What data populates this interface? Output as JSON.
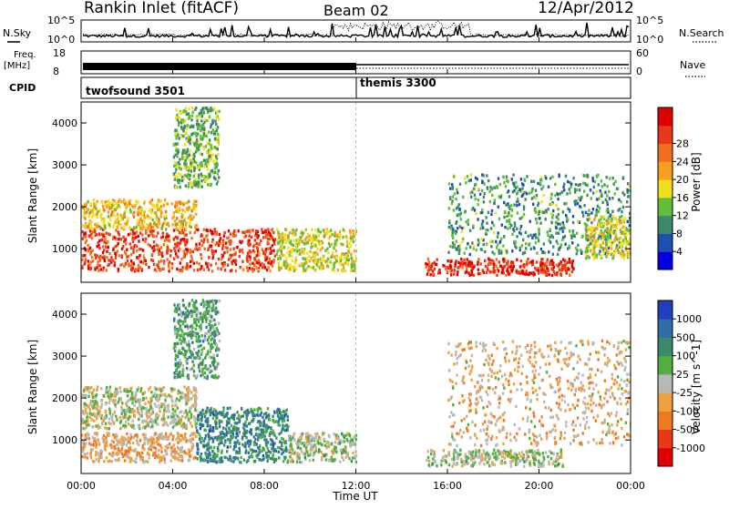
{
  "header": {
    "title": "Rankin Inlet (fitACF)",
    "beam": "Beam 02",
    "date": "12/Apr/2012"
  },
  "noise_panel": {
    "left_label": "N.Sky",
    "left_ticks": [
      "10^5",
      "10^0"
    ],
    "right_label": "N.Search",
    "right_ticks": [
      "10^5",
      "10^0"
    ]
  },
  "freq_panel": {
    "left_label_1": "Freq.",
    "left_label_2": "[MHz]",
    "left_ticks": [
      "18",
      "8"
    ],
    "right_label": "Nave",
    "right_ticks": [
      "60",
      "0"
    ]
  },
  "cpid": {
    "label": "CPID",
    "modes": [
      {
        "name": "twofsound 3501"
      },
      {
        "name": "themis 3300"
      }
    ]
  },
  "x_axis": {
    "label": "Time UT",
    "ticks": [
      "00:00",
      "04:00",
      "08:00",
      "12:00",
      "16:00",
      "20:00",
      "00:00"
    ]
  },
  "power_panel": {
    "ylabel": "Slant Range [km]",
    "yticks": [
      "1000",
      "2000",
      "3000",
      "4000"
    ],
    "colorbar_label": "Power [dB]",
    "colorbar_ticks": [
      "4",
      "8",
      "12",
      "16",
      "20",
      "24",
      "28"
    ],
    "colors": [
      "#0000e0",
      "#1f4fb0",
      "#3d8a6a",
      "#5fbf3a",
      "#f0e020",
      "#f5a020",
      "#f07020",
      "#e83818",
      "#e00000"
    ]
  },
  "velocity_panel": {
    "ylabel": "Slant Range [km]",
    "yticks": [
      "1000",
      "2000",
      "3000",
      "4000"
    ],
    "colorbar_label": "Velocity [m s^-1]",
    "colorbar_ticks": [
      "1000",
      "500",
      "100",
      "25",
      "-25",
      "-100",
      "-500",
      "-1000"
    ],
    "colors": [
      "#2040c0",
      "#2f6fa8",
      "#3d8a6a",
      "#4fb040",
      "#b8b8b8",
      "#f0a040",
      "#f07a20",
      "#e83818",
      "#e00000"
    ]
  },
  "chart_data": [
    {
      "type": "heatmap",
      "title": "Power",
      "xlabel": "Time UT",
      "ylabel": "Slant Range [km]",
      "xlim": [
        "00:00",
        "24:00"
      ],
      "ylim": [
        200,
        4500
      ],
      "colorbar_range_dB": [
        0,
        32
      ],
      "regions": [
        {
          "t_start": "00:00",
          "t_end": "08:30",
          "range_km": [
            500,
            1500
          ],
          "power_dB": 26
        },
        {
          "t_start": "00:00",
          "t_end": "05:00",
          "range_km": [
            1500,
            2200
          ],
          "power_dB": 18
        },
        {
          "t_start": "04:00",
          "t_end": "06:00",
          "range_km": [
            2500,
            4400
          ],
          "power_dB": 12
        },
        {
          "t_start": "08:30",
          "t_end": "12:00",
          "range_km": [
            500,
            1500
          ],
          "power_dB": 16
        },
        {
          "t_start": "15:00",
          "t_end": "21:30",
          "range_km": [
            400,
            800
          ],
          "power_dB": 28
        },
        {
          "t_start": "16:00",
          "t_end": "24:00",
          "range_km": [
            900,
            2800
          ],
          "power_dB": 10
        },
        {
          "t_start": "22:00",
          "t_end": "24:00",
          "range_km": [
            800,
            1800
          ],
          "power_dB": 16
        }
      ]
    },
    {
      "type": "heatmap",
      "title": "Velocity",
      "xlabel": "Time UT",
      "ylabel": "Slant Range [km]",
      "xlim": [
        "00:00",
        "24:00"
      ],
      "ylim": [
        200,
        4500
      ],
      "colorbar_range_ms": [
        -1000,
        1000
      ],
      "regions": [
        {
          "t_start": "00:00",
          "t_end": "05:00",
          "range_km": [
            500,
            1200
          ],
          "velocity_ms": -200
        },
        {
          "t_start": "00:00",
          "t_end": "05:00",
          "range_km": [
            1300,
            2300
          ],
          "velocity_ms": 0
        },
        {
          "t_start": "04:00",
          "t_end": "06:00",
          "range_km": [
            2500,
            4400
          ],
          "velocity_ms": 300
        },
        {
          "t_start": "05:00",
          "t_end": "09:00",
          "range_km": [
            500,
            1800
          ],
          "velocity_ms": 500
        },
        {
          "t_start": "09:00",
          "t_end": "12:00",
          "range_km": [
            500,
            1200
          ],
          "velocity_ms": 100
        },
        {
          "t_start": "15:00",
          "t_end": "21:00",
          "range_km": [
            400,
            800
          ],
          "velocity_ms": 50
        },
        {
          "t_start": "16:00",
          "t_end": "24:00",
          "range_km": [
            900,
            3400
          ],
          "velocity_ms": -150
        }
      ]
    }
  ]
}
